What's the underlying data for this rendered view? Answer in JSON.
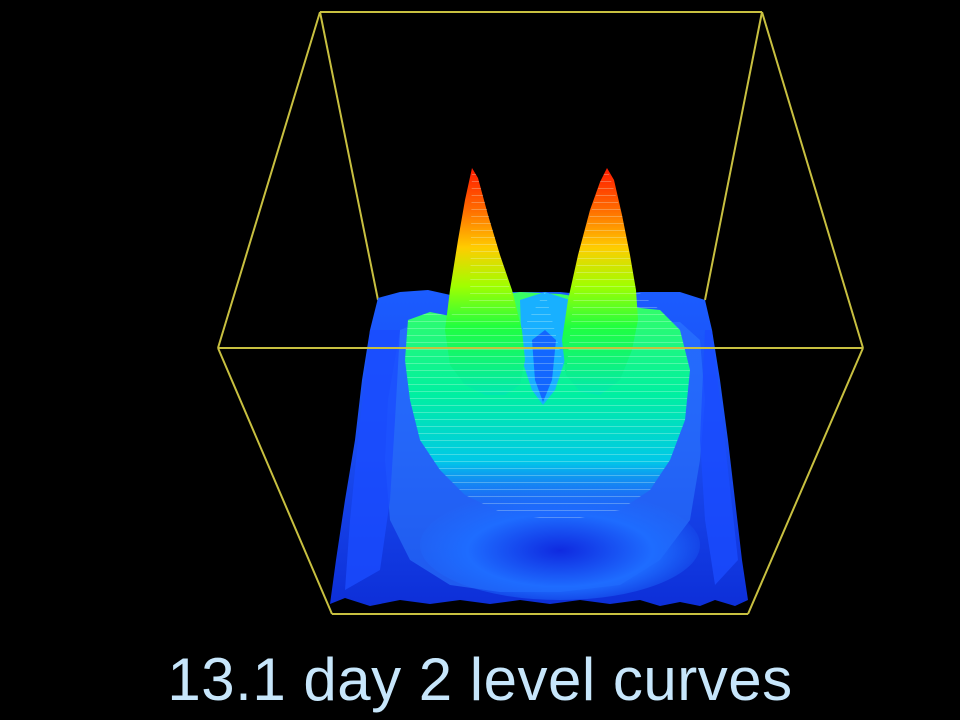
{
  "caption": "13.1 day 2 level curves",
  "colors": {
    "background": "#000000",
    "bounding_box": "#c8c040",
    "caption_text": "#c7e6fb",
    "surface_low": "#1438ff",
    "surface_mid": "#00ff40",
    "surface_high": "#ff1a00"
  }
}
